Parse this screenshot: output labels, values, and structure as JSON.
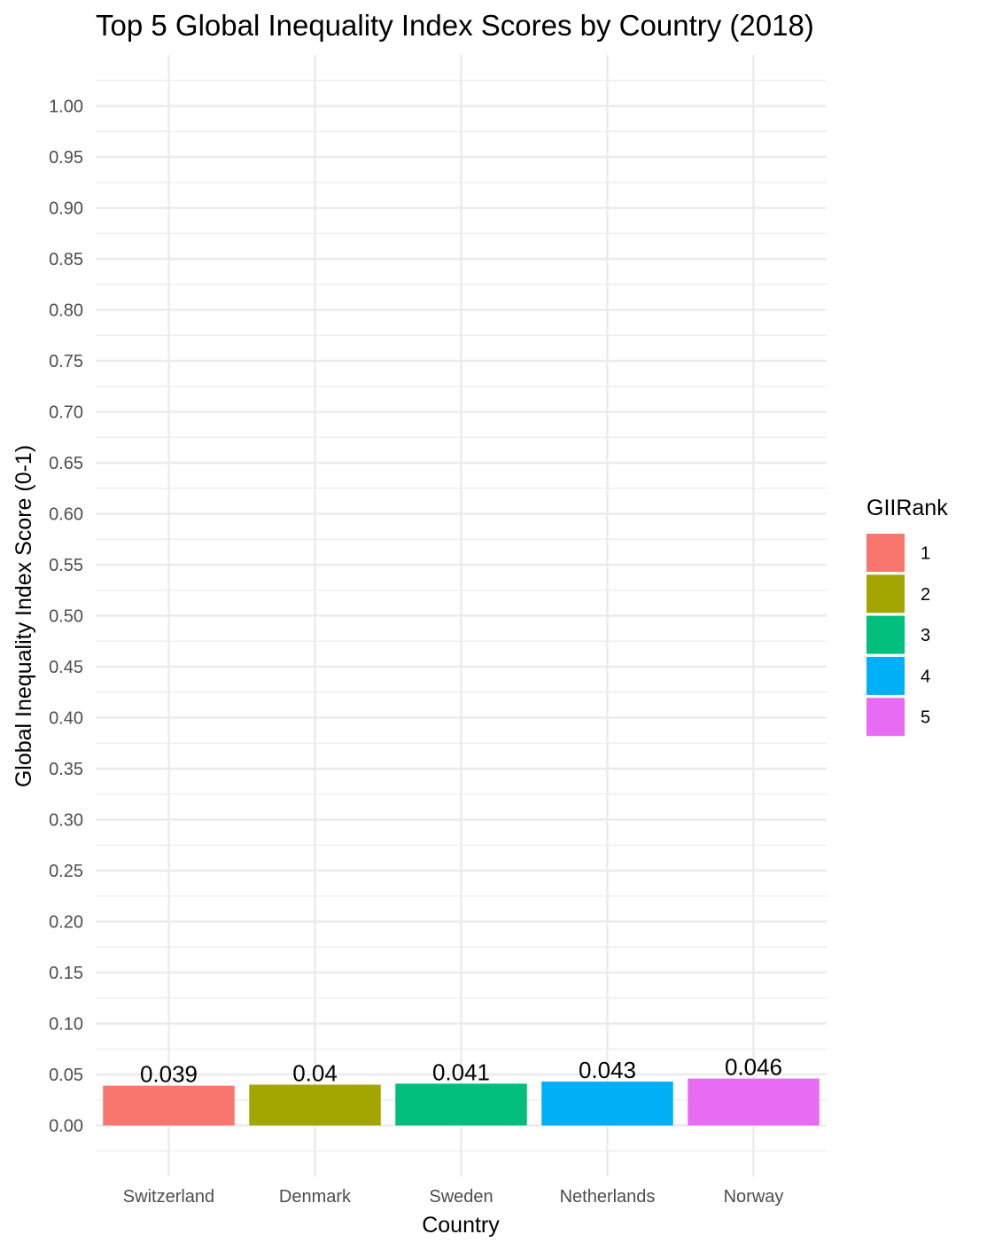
{
  "chart_data": {
    "type": "bar",
    "title": "Top 5 Global Inequality Index Scores by Country (2018)",
    "xlabel": "Country",
    "ylabel": "Global Inequality Index Score (0-1)",
    "categories": [
      "Switzerland",
      "Denmark",
      "Sweden",
      "Netherlands",
      "Norway"
    ],
    "values": [
      0.039,
      0.04,
      0.041,
      0.043,
      0.046
    ],
    "data_labels": [
      "0.039",
      "0.04",
      "0.041",
      "0.043",
      "0.046"
    ],
    "ylim": [
      -0.05,
      1.05
    ],
    "y_ticks": [
      0,
      0.05,
      0.1,
      0.15,
      0.2,
      0.25,
      0.3,
      0.35,
      0.4,
      0.45,
      0.5,
      0.55,
      0.6,
      0.65,
      0.7,
      0.75,
      0.8,
      0.85,
      0.9,
      0.95,
      1
    ],
    "y_tick_labels": [
      "0.00",
      "0.05",
      "0.10",
      "0.15",
      "0.20",
      "0.25",
      "0.30",
      "0.35",
      "0.40",
      "0.45",
      "0.50",
      "0.55",
      "0.60",
      "0.65",
      "0.70",
      "0.75",
      "0.80",
      "0.85",
      "0.90",
      "0.95",
      "1.00"
    ],
    "grid": true,
    "legend": {
      "title": "GIIRank",
      "placement": "right",
      "items": [
        {
          "label": "1",
          "color": "#F8766D"
        },
        {
          "label": "2",
          "color": "#A3A500"
        },
        {
          "label": "3",
          "color": "#00BF7D"
        },
        {
          "label": "4",
          "color": "#00B0F6"
        },
        {
          "label": "5",
          "color": "#E76BF3"
        }
      ]
    },
    "colors": [
      "#F8766D",
      "#A3A500",
      "#00BF7D",
      "#00B0F6",
      "#E76BF3"
    ]
  }
}
